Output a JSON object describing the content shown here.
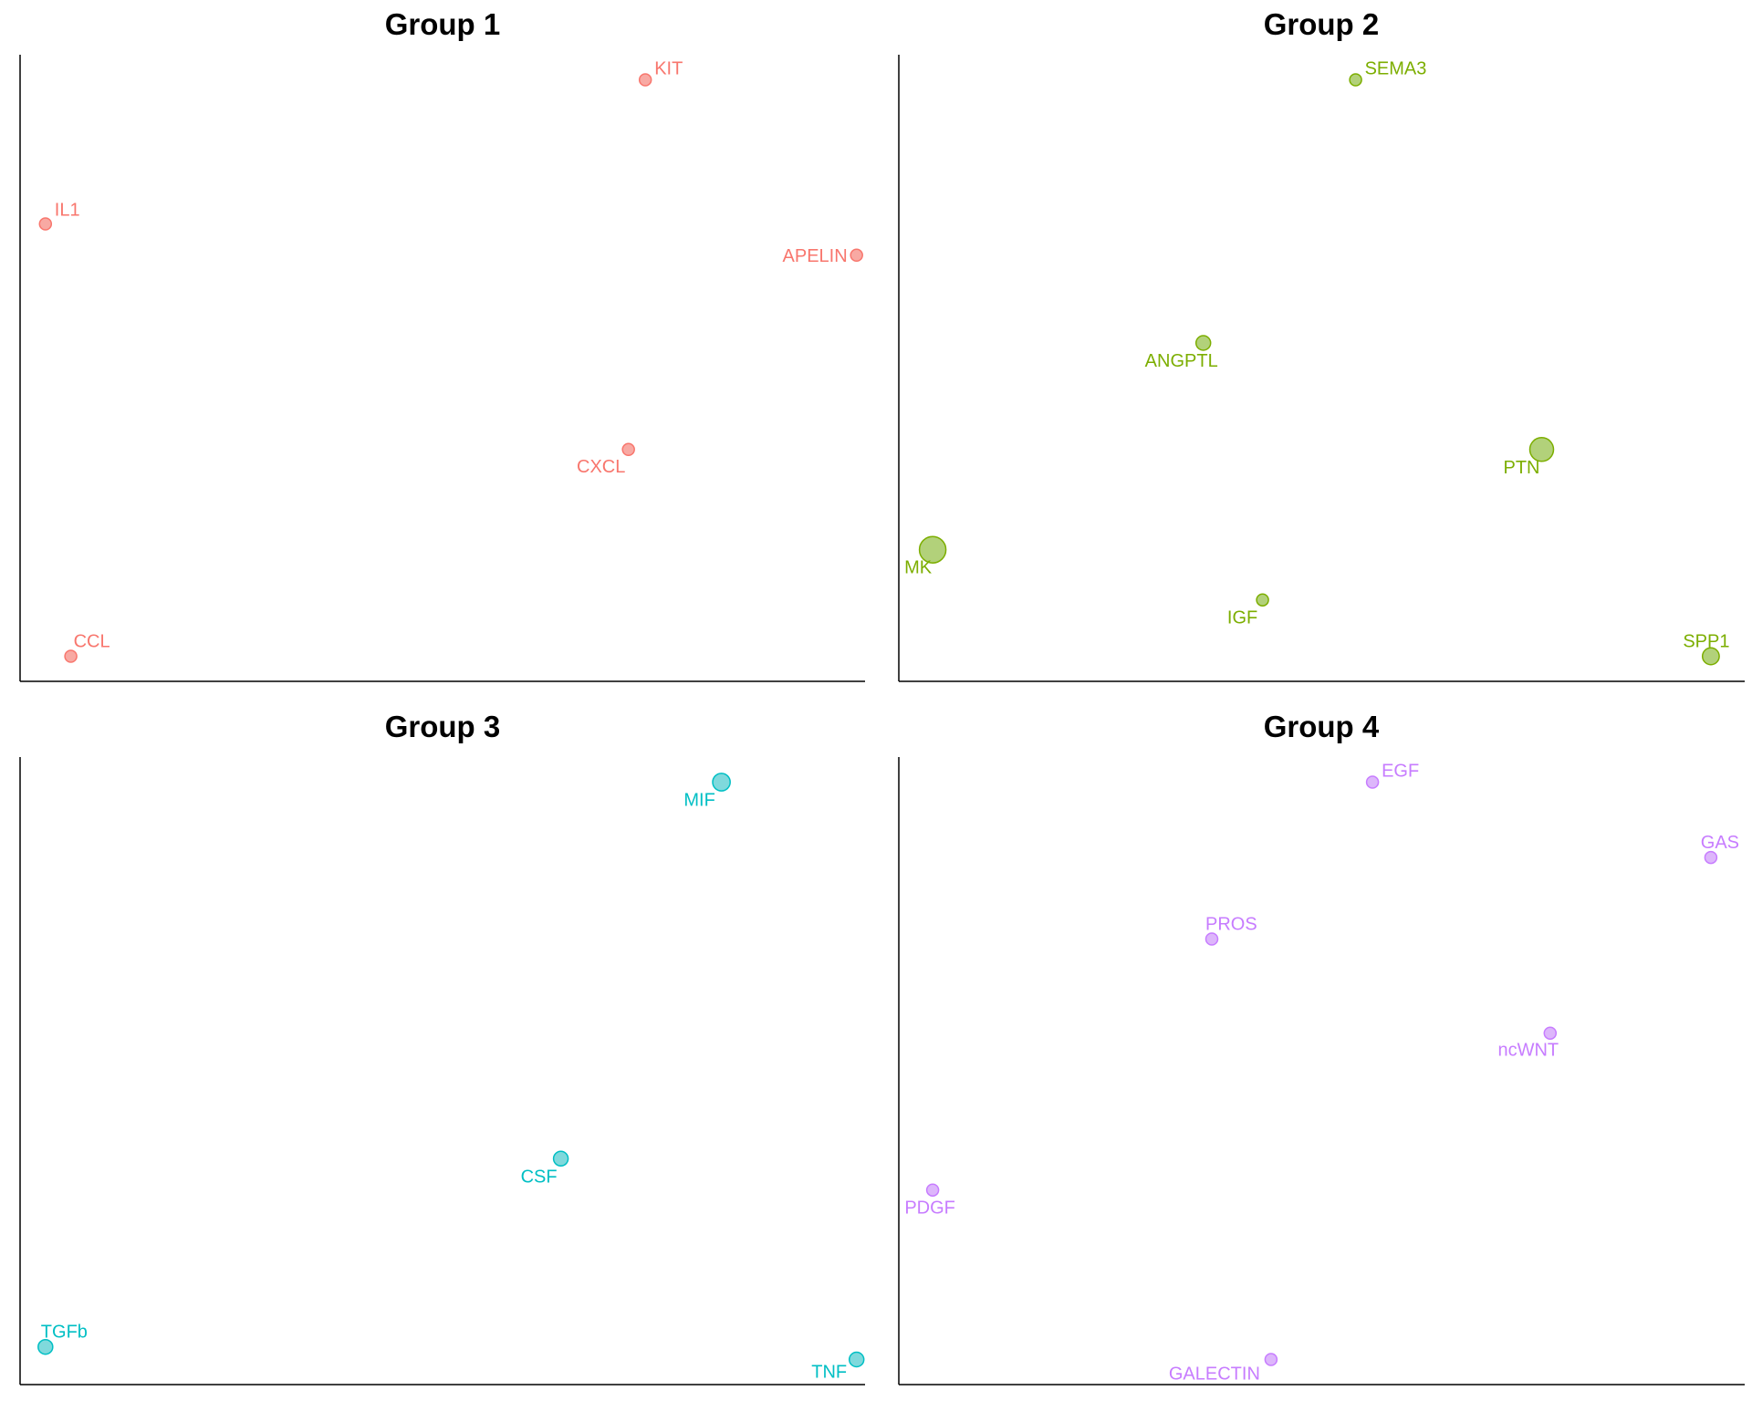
{
  "chart_data": [
    {
      "type": "scatter",
      "title": "Group 1",
      "color": "#F8766D",
      "fill": "#F8A9A3",
      "points": [
        {
          "label": "KIT",
          "x": 0.74,
          "y": 0.96,
          "size": 1
        },
        {
          "label": "IL1",
          "x": 0.03,
          "y": 0.73,
          "size": 1
        },
        {
          "label": "APELIN",
          "x": 0.99,
          "y": 0.68,
          "size": 1
        },
        {
          "label": "CXCL",
          "x": 0.72,
          "y": 0.37,
          "size": 1
        },
        {
          "label": "CCL",
          "x": 0.06,
          "y": 0.04,
          "size": 1
        }
      ]
    },
    {
      "type": "scatter",
      "title": "Group 2",
      "color": "#7CAE00",
      "fill": "#B2D17A",
      "points": [
        {
          "label": "SEMA3",
          "x": 0.54,
          "y": 0.96,
          "size": 1
        },
        {
          "label": "ANGPTL",
          "x": 0.36,
          "y": 0.54,
          "size": 1.5
        },
        {
          "label": "PTN",
          "x": 0.76,
          "y": 0.37,
          "size": 4
        },
        {
          "label": "MK",
          "x": 0.04,
          "y": 0.21,
          "size": 5
        },
        {
          "label": "IGF",
          "x": 0.43,
          "y": 0.13,
          "size": 1
        },
        {
          "label": "SPP1",
          "x": 0.96,
          "y": 0.04,
          "size": 2
        }
      ]
    },
    {
      "type": "scatter",
      "title": "Group 3",
      "color": "#00BFC4",
      "fill": "#7FD9DC",
      "points": [
        {
          "label": "MIF",
          "x": 0.83,
          "y": 0.96,
          "size": 2.2
        },
        {
          "label": "CSF",
          "x": 0.64,
          "y": 0.36,
          "size": 1.5
        },
        {
          "label": "TGFb",
          "x": 0.03,
          "y": 0.06,
          "size": 1.5
        },
        {
          "label": "TNF",
          "x": 0.99,
          "y": 0.04,
          "size": 1.5
        }
      ]
    },
    {
      "type": "scatter",
      "title": "Group 4",
      "color": "#C77CFF",
      "fill": "#DDB6FB",
      "points": [
        {
          "label": "EGF",
          "x": 0.56,
          "y": 0.96,
          "size": 1
        },
        {
          "label": "GAS",
          "x": 0.96,
          "y": 0.84,
          "size": 1
        },
        {
          "label": "PROS",
          "x": 0.37,
          "y": 0.71,
          "size": 1
        },
        {
          "label": "ncWNT",
          "x": 0.77,
          "y": 0.56,
          "size": 1
        },
        {
          "label": "PDGF",
          "x": 0.04,
          "y": 0.31,
          "size": 1
        },
        {
          "label": "GALECTIN",
          "x": 0.44,
          "y": 0.04,
          "size": 1
        }
      ]
    }
  ]
}
